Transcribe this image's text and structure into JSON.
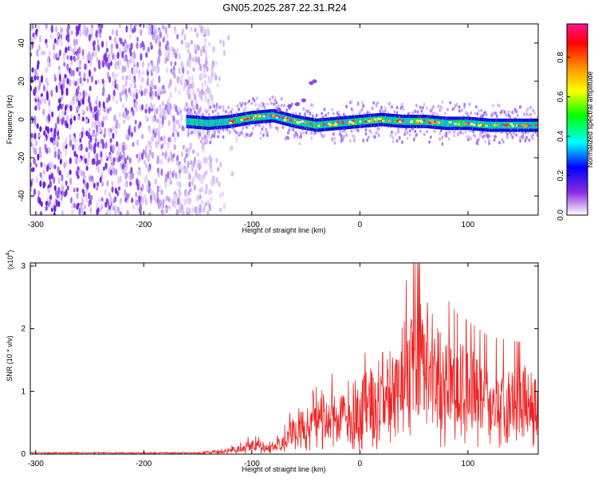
{
  "chart_data": [
    {
      "type": "heatmap",
      "title": "GN05.2025.287.22.31.R24",
      "xlabel": "Height of straight line (km)",
      "ylabel": "Frequency (Hz)",
      "xlim": [
        -305,
        165
      ],
      "ylim": [
        -50,
        50
      ],
      "x_ticks": [
        -300,
        -200,
        -100,
        0,
        100
      ],
      "y_ticks": [
        -40,
        -20,
        0,
        20,
        40
      ],
      "colorbar": {
        "label": "Normalized spectral amplitude",
        "range": [
          0,
          0.97
        ],
        "ticks": [
          0,
          0.2,
          0.4,
          0.6,
          0.8
        ],
        "colors": [
          "#ffffff",
          "#8a2be2",
          "#0000ff",
          "#00ffff",
          "#00ff00",
          "#ffff00",
          "#ff8800",
          "#ff0000",
          "#ff1493"
        ]
      },
      "features": {
        "noise_region_x": [
          -305,
          -135
        ],
        "signal_band_x": [
          -160,
          165
        ],
        "signal_center_freq_hz": [
          [
            -160,
            -1
          ],
          [
            -140,
            -2
          ],
          [
            -120,
            -1
          ],
          [
            -100,
            1
          ],
          [
            -80,
            2
          ],
          [
            -60,
            -1
          ],
          [
            -40,
            -3
          ],
          [
            -20,
            -2
          ],
          [
            0,
            -1
          ],
          [
            20,
            0
          ],
          [
            40,
            -1
          ],
          [
            60,
            -1
          ],
          [
            80,
            -2
          ],
          [
            100,
            -2
          ],
          [
            120,
            -3
          ],
          [
            140,
            -3
          ],
          [
            165,
            -3
          ]
        ]
      }
    },
    {
      "type": "line",
      "title": "",
      "xlabel": "Height of straight line (km)",
      "ylabel": "SNR (10 * v/v)",
      "scale_label": "(x10",
      "scale_exp": "4",
      "scale_close": ")",
      "xlim": [
        -305,
        165
      ],
      "ylim": [
        0,
        3.05
      ],
      "x_ticks": [
        -300,
        -200,
        -100,
        0,
        100
      ],
      "y_ticks": [
        0,
        1,
        2,
        3
      ],
      "series": [
        {
          "color": "#ee2222",
          "envelope": [
            [
              -305,
              0.02
            ],
            [
              -150,
              0.03
            ],
            [
              -130,
              0.06
            ],
            [
              -110,
              0.15
            ],
            [
              -100,
              0.25
            ],
            [
              -80,
              0.15
            ],
            [
              -70,
              0.35
            ],
            [
              -60,
              0.7
            ],
            [
              -50,
              0.9
            ],
            [
              -40,
              1.1
            ],
            [
              -20,
              1.0
            ],
            [
              -5,
              0.9
            ],
            [
              0,
              1.2
            ],
            [
              10,
              1.4
            ],
            [
              20,
              1.6
            ],
            [
              30,
              1.9
            ],
            [
              40,
              2.1
            ],
            [
              50,
              2.5
            ],
            [
              60,
              2.6
            ],
            [
              70,
              2.2
            ],
            [
              80,
              2.0
            ],
            [
              90,
              1.8
            ],
            [
              100,
              1.7
            ],
            [
              110,
              1.6
            ],
            [
              120,
              1.5
            ],
            [
              140,
              1.45
            ],
            [
              165,
              1.4
            ]
          ]
        }
      ]
    }
  ]
}
